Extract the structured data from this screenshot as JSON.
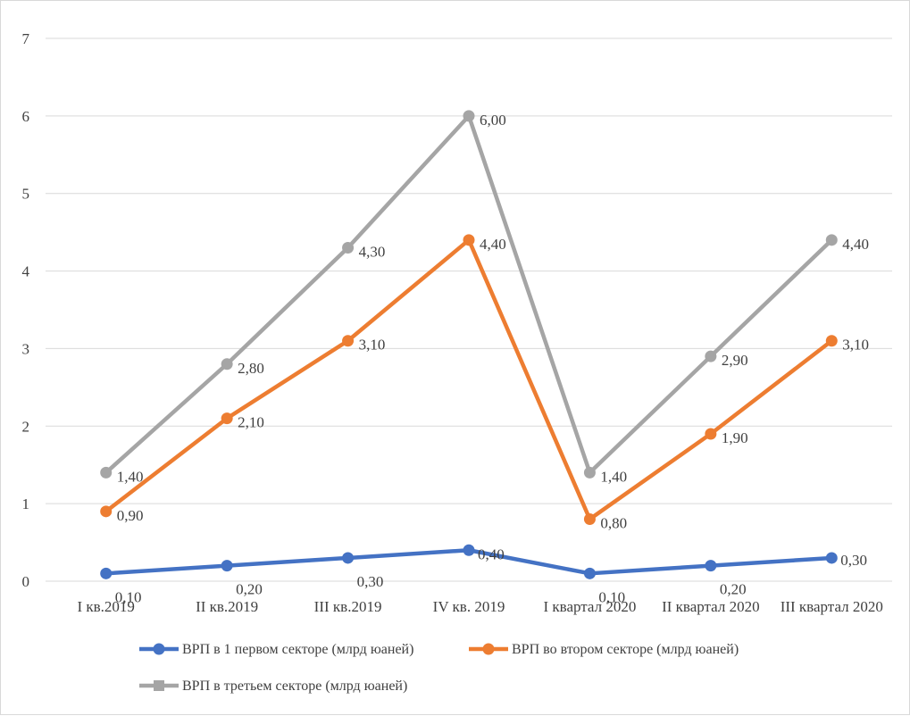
{
  "chart_data": {
    "type": "line",
    "title": "",
    "xlabel": "",
    "ylabel": "",
    "ylim": [
      0,
      7
    ],
    "y_ticks": [
      "0",
      "1",
      "2",
      "3",
      "4",
      "5",
      "6",
      "7"
    ],
    "grid": true,
    "legend_placement": "bottom",
    "categories": [
      "I кв.2019",
      "II кв.2019",
      "III кв.2019",
      "IV кв. 2019",
      "I квартал 2020",
      "II квартал 2020",
      "III квартал 2020"
    ],
    "series": [
      {
        "name": "ВРП в 1 первом секторе (млрд юаней)",
        "color": "#4472c4",
        "values": [
          0.1,
          0.2,
          0.3,
          0.4,
          0.1,
          0.2,
          0.3
        ],
        "labels": [
          "0,10",
          "0,20",
          "0,30",
          "0,40",
          "0,10",
          "0,20",
          "0,30"
        ]
      },
      {
        "name": "ВРП во втором секторе (млрд юаней)",
        "color": "#ed7d31",
        "values": [
          0.9,
          2.1,
          3.1,
          4.4,
          0.8,
          1.9,
          3.1
        ],
        "labels": [
          "0,90",
          "2,10",
          "3,10",
          "4,40",
          "0,80",
          "1,90",
          "3,10"
        ]
      },
      {
        "name": "ВРП в третьем секторе (млрд юаней)",
        "color": "#a5a5a5",
        "values": [
          1.4,
          2.8,
          4.3,
          6.0,
          1.4,
          2.9,
          4.4
        ],
        "labels": [
          "1,40",
          "2,80",
          "4,30",
          "6,00",
          "1,40",
          "2,90",
          "4,40"
        ]
      }
    ]
  }
}
